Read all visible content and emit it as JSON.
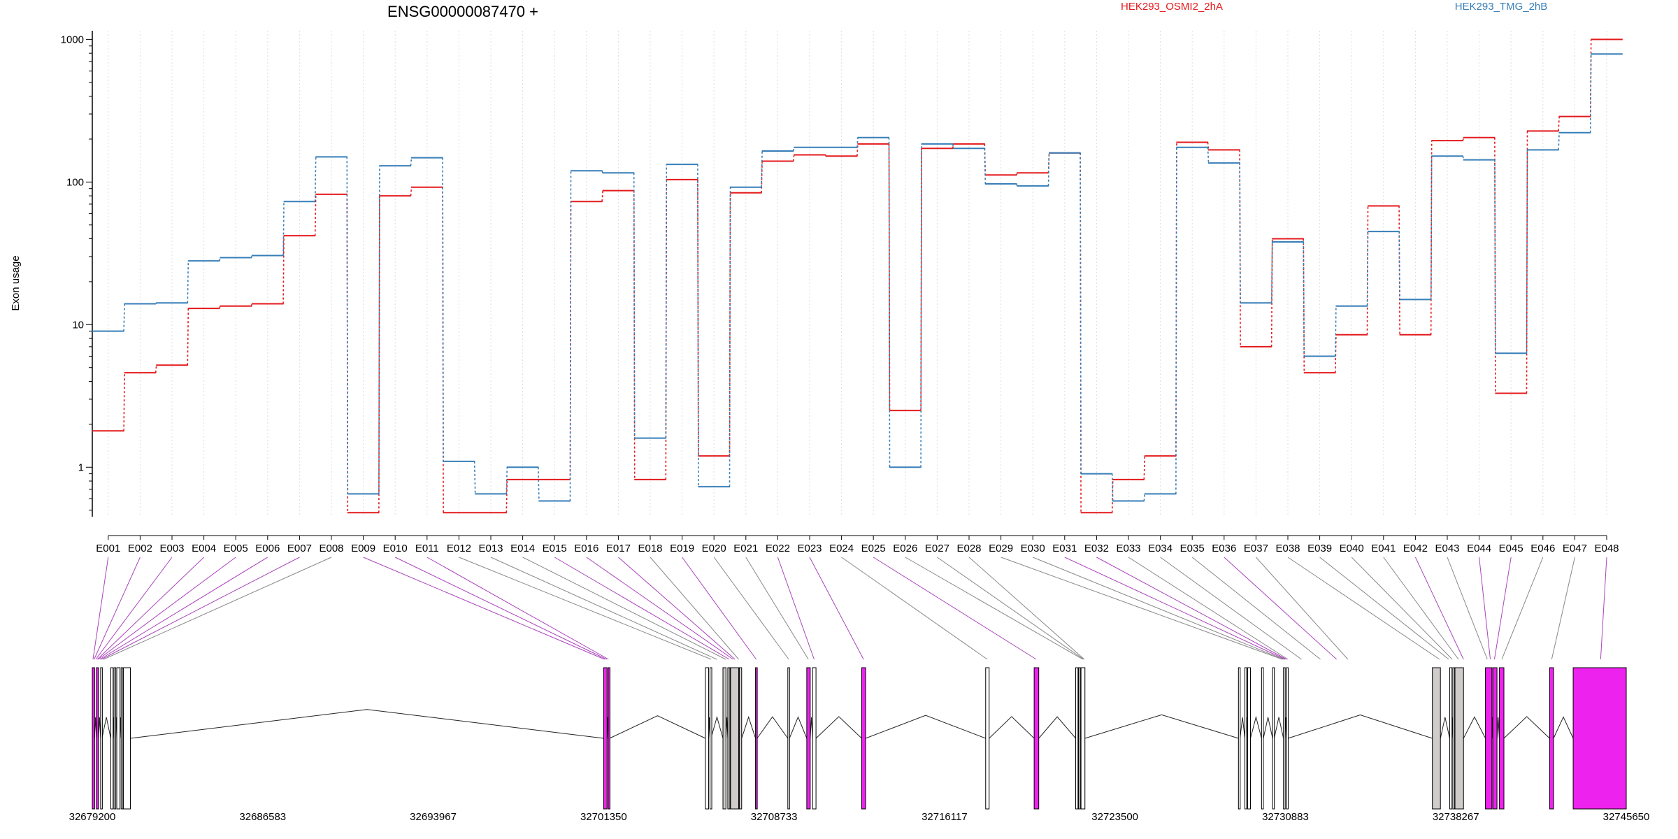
{
  "chart_data": {
    "type": "line",
    "title": "ENSG00000087470 +",
    "xlabel": "",
    "ylabel": "Exon usage",
    "yscale": "log",
    "ylim": [
      0.45,
      1150
    ],
    "yticks": [
      1,
      10,
      100,
      1000
    ],
    "grid": "vertical dotted lines at exon bins",
    "legend_position": "top",
    "colors": {
      "sample_a": "#e41a1c",
      "sample_b": "#377eb8",
      "highlight": "#ee22ee",
      "plain": "#ffffff",
      "shaded": "#d0cccc"
    },
    "categories": [
      "E001",
      "E002",
      "E003",
      "E004",
      "E005",
      "E006",
      "E007",
      "E008",
      "E009",
      "E010",
      "E011",
      "E012",
      "E013",
      "E014",
      "E015",
      "E016",
      "E017",
      "E018",
      "E019",
      "E020",
      "E021",
      "E022",
      "E023",
      "E024",
      "E025",
      "E026",
      "E027",
      "E028",
      "E029",
      "E030",
      "E031",
      "E032",
      "E033",
      "E034",
      "E035",
      "E036",
      "E037",
      "E038",
      "E039",
      "E040",
      "E041",
      "E042",
      "E043",
      "E044",
      "E045",
      "E046",
      "E047",
      "E048"
    ],
    "series": [
      {
        "name": "HEK293_OSMI2_2hA",
        "color": "#e41a1c",
        "values": [
          1.8,
          4.6,
          5.2,
          13,
          13.5,
          14,
          42,
          82,
          0.48,
          80,
          92,
          0.48,
          0.48,
          0.82,
          0.82,
          73,
          87,
          0.82,
          104,
          1.2,
          84,
          140,
          155,
          152,
          185,
          2.5,
          172,
          185,
          112,
          116,
          160,
          0.48,
          0.82,
          1.2,
          190,
          168,
          7,
          40,
          4.6,
          8.5,
          68,
          8.5,
          195,
          205,
          3.3,
          228,
          288,
          1000
        ]
      },
      {
        "name": "HEK293_TMG_2hB",
        "color": "#377eb8",
        "values": [
          9,
          14,
          14.2,
          28,
          29.5,
          30.5,
          73,
          150,
          0.65,
          130,
          148,
          1.1,
          0.65,
          1.0,
          0.58,
          120,
          116,
          1.6,
          133,
          0.73,
          92,
          165,
          175,
          175,
          205,
          1.0,
          185,
          172,
          97,
          94,
          160,
          0.9,
          0.58,
          0.65,
          175,
          136,
          14.2,
          38,
          6,
          13.5,
          45,
          15,
          152,
          143,
          6.3,
          168,
          222,
          790
        ]
      }
    ],
    "genomic_axis": {
      "range": [
        32679200,
        32745650
      ],
      "tick_labels": [
        "32679200",
        "32686583",
        "32693967",
        "32701350",
        "32708733",
        "32716117",
        "32723500",
        "32730883",
        "32738267",
        "32745650"
      ]
    },
    "exons": [
      {
        "start": 32679200,
        "end": 32679300,
        "type": "highlight"
      },
      {
        "start": 32679380,
        "end": 32679470,
        "type": "highlight"
      },
      {
        "start": 32679560,
        "end": 32679620,
        "type": "plain"
      },
      {
        "start": 32680000,
        "end": 32680100,
        "type": "plain"
      },
      {
        "start": 32680140,
        "end": 32680200,
        "type": "plain"
      },
      {
        "start": 32680260,
        "end": 32680400,
        "type": "plain"
      },
      {
        "start": 32680450,
        "end": 32680500,
        "type": "plain"
      },
      {
        "start": 32680550,
        "end": 32680850,
        "type": "plain"
      },
      {
        "start": 32701350,
        "end": 32701500,
        "type": "highlight"
      },
      {
        "start": 32701550,
        "end": 32701610,
        "type": "highlight"
      },
      {
        "start": 32705760,
        "end": 32705900,
        "type": "plain"
      },
      {
        "start": 32705960,
        "end": 32706000,
        "type": "plain"
      },
      {
        "start": 32706520,
        "end": 32706650,
        "type": "shaded"
      },
      {
        "start": 32706730,
        "end": 32706820,
        "type": "shaded"
      },
      {
        "start": 32706850,
        "end": 32707200,
        "type": "shaded"
      },
      {
        "start": 32707230,
        "end": 32707330,
        "type": "shaded"
      },
      {
        "start": 32707930,
        "end": 32708000,
        "type": "highlight"
      },
      {
        "start": 32709330,
        "end": 32709400,
        "type": "plain"
      },
      {
        "start": 32710150,
        "end": 32710300,
        "type": "highlight"
      },
      {
        "start": 32710400,
        "end": 32710550,
        "type": "plain"
      },
      {
        "start": 32712530,
        "end": 32712700,
        "type": "highlight"
      },
      {
        "start": 32717900,
        "end": 32718050,
        "type": "plain"
      },
      {
        "start": 32720000,
        "end": 32720200,
        "type": "highlight"
      },
      {
        "start": 32721800,
        "end": 32721900,
        "type": "plain"
      },
      {
        "start": 32721920,
        "end": 32722000,
        "type": "shaded"
      },
      {
        "start": 32722030,
        "end": 32722200,
        "type": "plain"
      },
      {
        "start": 32728850,
        "end": 32728920,
        "type": "plain"
      },
      {
        "start": 32729130,
        "end": 32729200,
        "type": "plain"
      },
      {
        "start": 32729250,
        "end": 32729370,
        "type": "plain"
      },
      {
        "start": 32729850,
        "end": 32729930,
        "type": "plain"
      },
      {
        "start": 32730330,
        "end": 32730400,
        "type": "plain"
      },
      {
        "start": 32730800,
        "end": 32730870,
        "type": "plain"
      },
      {
        "start": 32730930,
        "end": 32731000,
        "type": "plain"
      },
      {
        "start": 32737250,
        "end": 32737600,
        "type": "shaded"
      },
      {
        "start": 32738000,
        "end": 32738100,
        "type": "plain"
      },
      {
        "start": 32738140,
        "end": 32738200,
        "type": "plain"
      },
      {
        "start": 32738230,
        "end": 32738600,
        "type": "shaded"
      },
      {
        "start": 32739550,
        "end": 32739830,
        "type": "highlight"
      },
      {
        "start": 32739870,
        "end": 32740050,
        "type": "highlight"
      },
      {
        "start": 32740150,
        "end": 32740350,
        "type": "highlight"
      },
      {
        "start": 32742330,
        "end": 32742500,
        "type": "highlight"
      },
      {
        "start": 32743350,
        "end": 32745650,
        "type": "highlight"
      }
    ],
    "exon_bin_positions": [
      32679230,
      32679280,
      32679350,
      32679420,
      32679460,
      32679530,
      32679600,
      32679690,
      32701390,
      32701480,
      32701560,
      32706010,
      32706250,
      32706640,
      32706790,
      32706960,
      32707040,
      32707200,
      32707960,
      32709370,
      32710220,
      32710470,
      32712610,
      32717970,
      32720090,
      32722110,
      32722140,
      32722170,
      32730750,
      32730800,
      32730870,
      32730930,
      32730990,
      32731580,
      32732400,
      32733100,
      32733590,
      32737560,
      32737960,
      32738110,
      32738380,
      32738600,
      32739630,
      32739760,
      32739940,
      32740260,
      32742420,
      32744540
    ]
  }
}
